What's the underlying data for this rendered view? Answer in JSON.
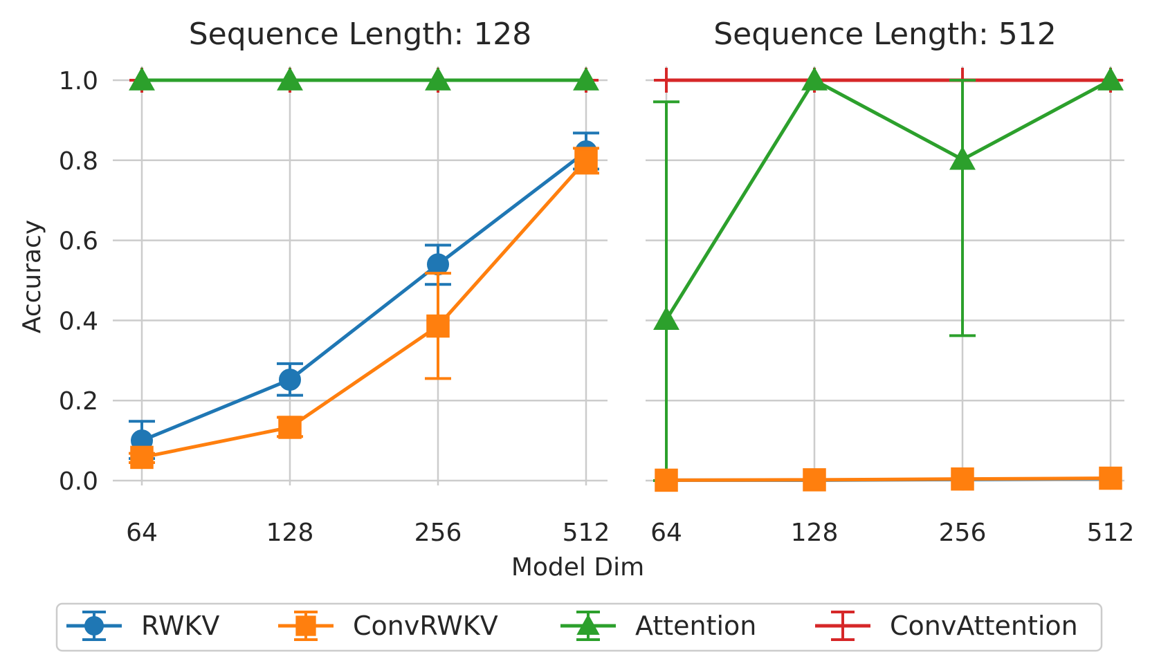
{
  "chart_data": {
    "type": "line",
    "ylabel": "Accuracy",
    "xlabel": "Model Dim",
    "x_categories": [
      "64",
      "128",
      "256",
      "512"
    ],
    "y_ticks": [
      "0.0",
      "0.2",
      "0.4",
      "0.6",
      "0.8",
      "1.0"
    ],
    "ylim": [
      -0.03,
      1.05
    ],
    "grid": true,
    "legend_placement": "bottom-center",
    "legend": [
      "RWKV",
      "ConvRWKV",
      "Attention",
      "ConvAttention"
    ],
    "colors": {
      "RWKV": "#1f77b4",
      "ConvRWKV": "#ff7f0e",
      "Attention": "#2ca02c",
      "ConvAttention": "#d62728"
    },
    "markers": {
      "RWKV": "circle",
      "ConvRWKV": "square",
      "Attention": "triangle",
      "ConvAttention": "plus"
    },
    "panels": [
      {
        "title": "Sequence Length: 128",
        "series": [
          {
            "name": "ConvAttention",
            "values": [
              1.0,
              1.0,
              1.0,
              1.0
            ],
            "err_low": [
              1.0,
              1.0,
              1.0,
              1.0
            ],
            "err_high": [
              1.0,
              1.0,
              1.0,
              1.0
            ]
          },
          {
            "name": "Attention",
            "values": [
              1.0,
              1.0,
              1.0,
              1.0
            ],
            "err_low": [
              1.0,
              1.0,
              1.0,
              1.0
            ],
            "err_high": [
              1.0,
              1.0,
              1.0,
              1.0
            ]
          },
          {
            "name": "RWKV",
            "values": [
              0.1,
              0.252,
              0.54,
              0.822
            ],
            "err_low": [
              0.055,
              0.213,
              0.49,
              0.778
            ],
            "err_high": [
              0.148,
              0.292,
              0.588,
              0.868
            ]
          },
          {
            "name": "ConvRWKV",
            "values": [
              0.058,
              0.133,
              0.386,
              0.8
            ],
            "err_low": [
              0.045,
              0.11,
              0.255,
              0.768
            ],
            "err_high": [
              0.068,
              0.158,
              0.518,
              0.83
            ]
          }
        ]
      },
      {
        "title": "Sequence Length: 512",
        "series": [
          {
            "name": "ConvAttention",
            "values": [
              1.0,
              1.0,
              1.0,
              1.0
            ],
            "err_low": [
              1.0,
              1.0,
              1.0,
              1.0
            ],
            "err_high": [
              1.0,
              1.0,
              1.0,
              1.0
            ]
          },
          {
            "name": "Attention",
            "values": [
              0.402,
              1.0,
              0.802,
              1.0
            ],
            "err_low": [
              0.0,
              1.0,
              0.362,
              1.0
            ],
            "err_high": [
              0.946,
              1.0,
              1.0,
              1.0
            ]
          },
          {
            "name": "RWKV",
            "values": [
              0.001,
              0.001,
              0.003,
              0.005
            ],
            "err_low": [
              0.001,
              0.001,
              0.003,
              0.005
            ],
            "err_high": [
              0.001,
              0.001,
              0.003,
              0.005
            ]
          },
          {
            "name": "ConvRWKV",
            "values": [
              0.001,
              0.002,
              0.004,
              0.006
            ],
            "err_low": [
              0.001,
              0.002,
              0.004,
              0.006
            ],
            "err_high": [
              0.001,
              0.002,
              0.004,
              0.006
            ]
          }
        ]
      }
    ]
  }
}
